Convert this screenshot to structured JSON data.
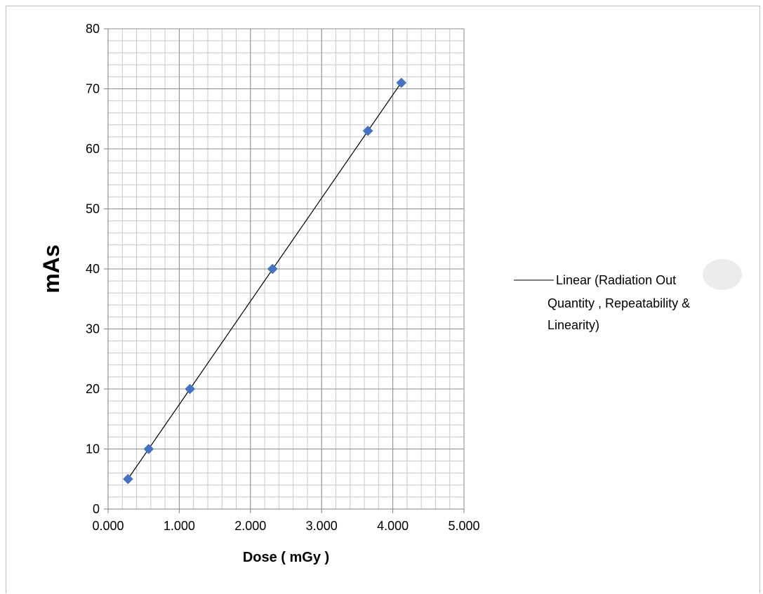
{
  "chart_data": {
    "type": "scatter",
    "title": "",
    "xlabel": "Dose ( mGy )",
    "ylabel": "mAs",
    "xlim": [
      0,
      5
    ],
    "ylim": [
      0,
      80
    ],
    "x_major_step": 1,
    "x_minor_step": 0.2,
    "y_major_step": 10,
    "y_minor_step": 2,
    "x_tick_labels": [
      "0.000",
      "1.000",
      "2.000",
      "3.000",
      "4.000",
      "5.000"
    ],
    "y_tick_labels": [
      "0",
      "10",
      "20",
      "30",
      "40",
      "50",
      "60",
      "70",
      "80"
    ],
    "grid": true,
    "series": [
      {
        "x": [
          0.28,
          0.57,
          1.15,
          2.31,
          3.65,
          4.12
        ],
        "y": [
          5,
          10,
          20,
          40,
          63,
          71
        ],
        "marker": "diamond",
        "color": "#4472C4"
      }
    ],
    "trendline": {
      "type": "linear",
      "color": "#000000",
      "legend_lines": [
        "Linear (Radiation Out",
        "Quantity , Repeatability &",
        "Linearity)"
      ]
    },
    "legend_position": "right"
  }
}
